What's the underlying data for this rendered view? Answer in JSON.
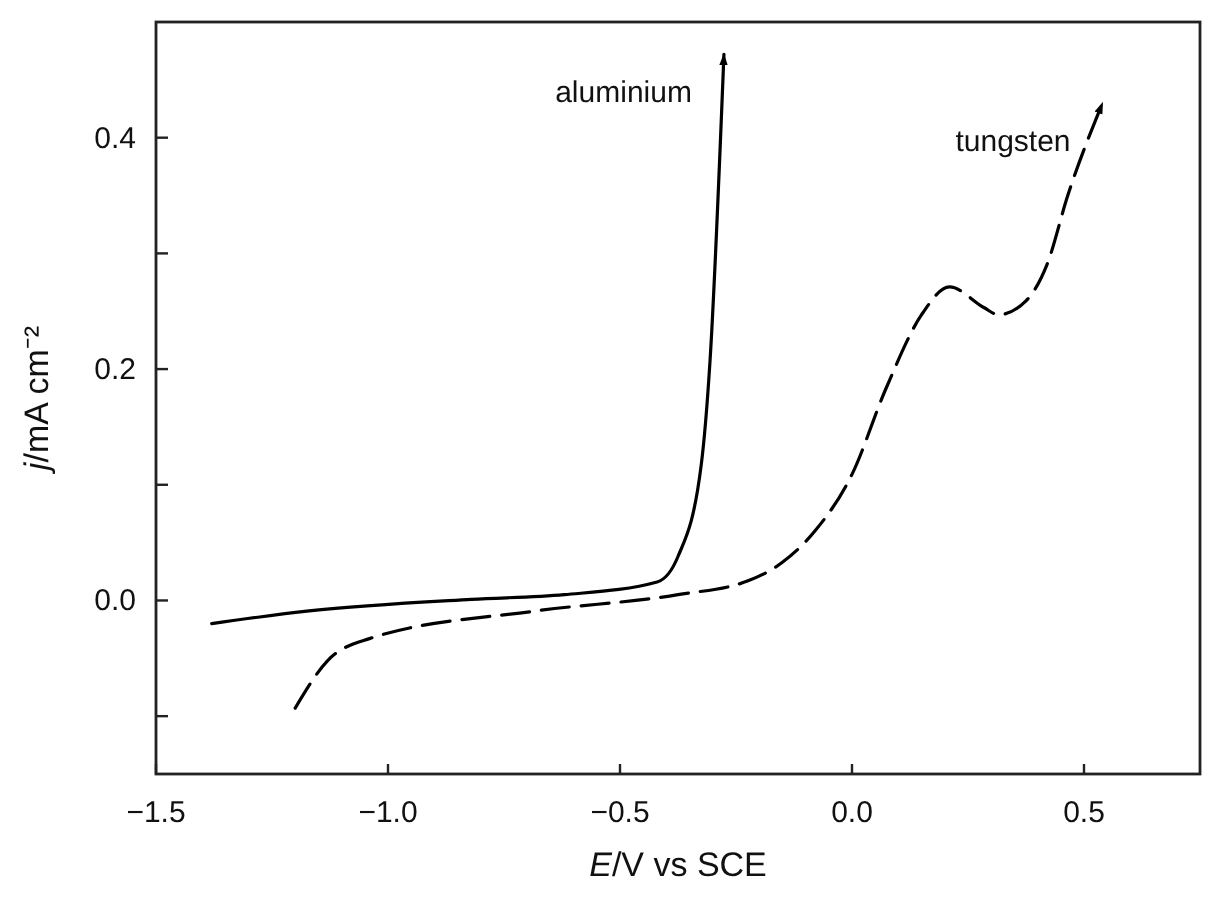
{
  "chart_data": {
    "type": "line",
    "xlabel": "E/V vs SCE",
    "ylabel": "j/mA cm⁻²",
    "xlim": [
      -1.5,
      0.75
    ],
    "ylim": [
      -0.15,
      0.5
    ],
    "xticks": [
      {
        "value": -1.5,
        "label": "−1.5"
      },
      {
        "value": -1.0,
        "label": "−1.0"
      },
      {
        "value": -0.5,
        "label": "−0.5"
      },
      {
        "value": 0,
        "label": "0.0"
      },
      {
        "value": 0.5,
        "label": "0.5"
      }
    ],
    "yticks": [
      {
        "value": -0.1,
        "label": null
      },
      {
        "value": 0,
        "label": "0.0"
      },
      {
        "value": 0.1,
        "label": null
      },
      {
        "value": 0.2,
        "label": "0.2"
      },
      {
        "value": 0.3,
        "label": null
      },
      {
        "value": 0.4,
        "label": "0.4"
      }
    ],
    "grid": false,
    "marker": "none",
    "series": [
      {
        "name": "aluminium",
        "color": "#000000",
        "line_style": "solid",
        "x": [
          -1.38,
          -1.17,
          -0.82,
          -0.62,
          -0.42,
          -0.375,
          -0.325,
          -0.306,
          -0.276
        ],
        "values": [
          -0.02,
          -0.009,
          0.001,
          0.005,
          0.016,
          0.038,
          0.117,
          0.207,
          0.472
        ]
      },
      {
        "name": "tungsten",
        "color": "#000000",
        "line_style": "dashed",
        "x": [
          -1.2,
          -1.13,
          -1.04,
          -0.68,
          -0.375,
          -0.224,
          -0.15,
          -0.08,
          0.0,
          0.073,
          0.15,
          0.21,
          0.285,
          0.315,
          0.375,
          0.42,
          0.465,
          0.54
        ],
        "values": [
          -0.093,
          -0.052,
          -0.033,
          -0.009,
          0.005,
          0.017,
          0.033,
          0.06,
          0.109,
          0.183,
          0.247,
          0.271,
          0.253,
          0.247,
          0.259,
          0.29,
          0.35,
          0.43
        ]
      }
    ]
  }
}
